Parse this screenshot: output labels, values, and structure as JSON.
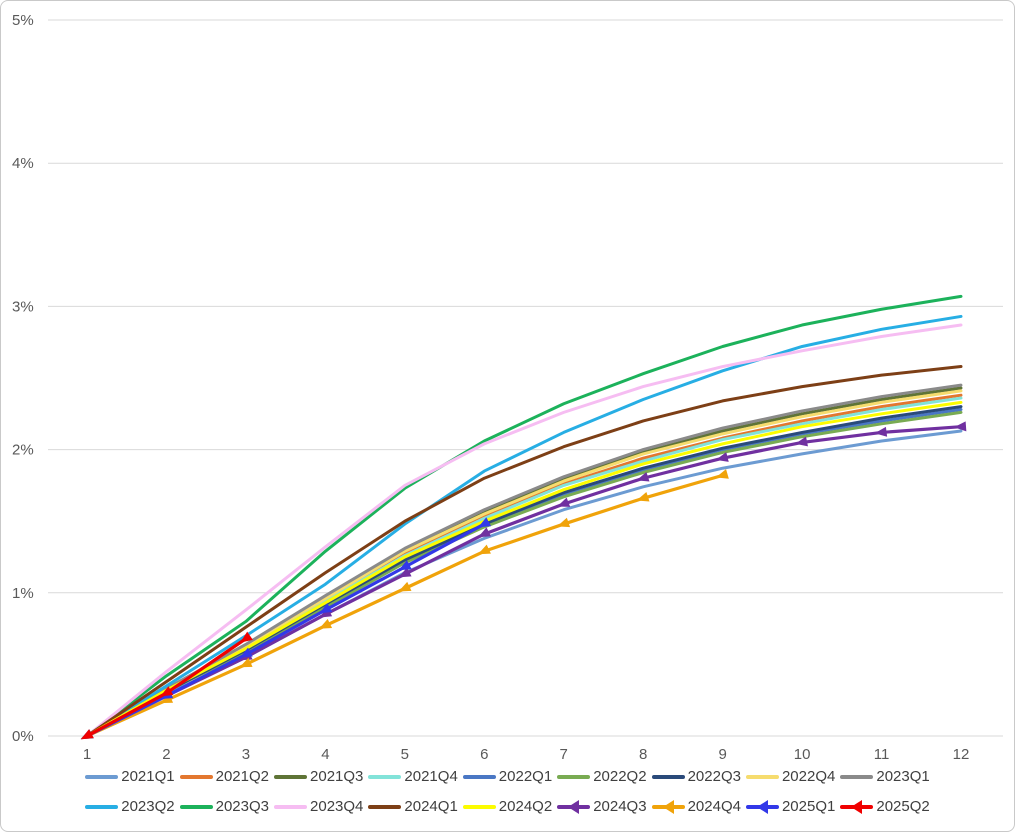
{
  "figure": {
    "background": "#ffffff",
    "border_color": "#c9c9c9"
  },
  "chart_data": {
    "type": "line",
    "title": "",
    "xlabel": "",
    "ylabel": "",
    "x": [
      1,
      2,
      3,
      4,
      5,
      6,
      7,
      8,
      9,
      10,
      11,
      12
    ],
    "x_ticks": [
      "1",
      "2",
      "3",
      "4",
      "5",
      "6",
      "7",
      "8",
      "9",
      "10",
      "11",
      "12"
    ],
    "y_ticks": [
      "0%",
      "1%",
      "2%",
      "3%",
      "4%",
      "5%"
    ],
    "y_tick_values": [
      0,
      1,
      2,
      3,
      4,
      5
    ],
    "xlim": [
      1,
      12
    ],
    "ylim": [
      0,
      5
    ],
    "y_unit": "%",
    "grid": "horizontal",
    "gridline_color": "#d9d9d9",
    "axis_label_color": "#595959",
    "legend_text_color": "#3f3f3f",
    "legend_position": "bottom",
    "legend_rows": 2,
    "series": [
      {
        "name": "2021Q1",
        "color": "#6C9BD2",
        "marker": false,
        "values": [
          0,
          0.29,
          0.55,
          0.85,
          1.14,
          1.38,
          1.58,
          1.74,
          1.87,
          1.97,
          2.06,
          2.13
        ]
      },
      {
        "name": "2021Q2",
        "color": "#E3772F",
        "marker": false,
        "values": [
          0,
          0.32,
          0.62,
          0.95,
          1.27,
          1.54,
          1.76,
          1.94,
          2.08,
          2.2,
          2.3,
          2.38
        ]
      },
      {
        "name": "2021Q3",
        "color": "#5F7436",
        "marker": false,
        "values": [
          0,
          0.33,
          0.63,
          0.97,
          1.3,
          1.57,
          1.8,
          1.98,
          2.13,
          2.25,
          2.35,
          2.43
        ]
      },
      {
        "name": "2021Q4",
        "color": "#82E3D9",
        "marker": false,
        "values": [
          0,
          0.32,
          0.61,
          0.94,
          1.26,
          1.52,
          1.75,
          1.92,
          2.07,
          2.18,
          2.28,
          2.36
        ]
      },
      {
        "name": "2022Q1",
        "color": "#4A77C4",
        "marker": false,
        "values": [
          0,
          0.31,
          0.59,
          0.91,
          1.22,
          1.47,
          1.69,
          1.86,
          2.0,
          2.11,
          2.2,
          2.28
        ]
      },
      {
        "name": "2022Q2",
        "color": "#79AB52",
        "marker": false,
        "values": [
          0,
          0.31,
          0.59,
          0.9,
          1.21,
          1.46,
          1.67,
          1.84,
          1.98,
          2.09,
          2.18,
          2.26
        ]
      },
      {
        "name": "2022Q3",
        "color": "#2A4A7A",
        "marker": false,
        "values": [
          0,
          0.31,
          0.6,
          0.92,
          1.23,
          1.48,
          1.7,
          1.87,
          2.01,
          2.12,
          2.22,
          2.3
        ]
      },
      {
        "name": "2022Q4",
        "color": "#F6DC6E",
        "marker": false,
        "values": [
          0,
          0.33,
          0.63,
          0.96,
          1.29,
          1.55,
          1.78,
          1.97,
          2.11,
          2.23,
          2.33,
          2.41
        ]
      },
      {
        "name": "2023Q1",
        "color": "#8A8A8A",
        "marker": false,
        "values": [
          0,
          0.33,
          0.64,
          0.98,
          1.31,
          1.58,
          1.81,
          2.0,
          2.15,
          2.27,
          2.37,
          2.45
        ]
      },
      {
        "name": "2023Q2",
        "color": "#27AEE4",
        "marker": false,
        "values": [
          0,
          0.35,
          0.7,
          1.06,
          1.48,
          1.85,
          2.12,
          2.35,
          2.55,
          2.72,
          2.84,
          2.93
        ]
      },
      {
        "name": "2023Q3",
        "color": "#1CB25B",
        "marker": false,
        "values": [
          0,
          0.42,
          0.8,
          1.29,
          1.73,
          2.06,
          2.32,
          2.53,
          2.72,
          2.87,
          2.98,
          3.07
        ]
      },
      {
        "name": "2023Q4",
        "color": "#F6BDF2",
        "marker": false,
        "values": [
          0,
          0.45,
          0.88,
          1.32,
          1.75,
          2.04,
          2.26,
          2.44,
          2.58,
          2.69,
          2.79,
          2.87
        ]
      },
      {
        "name": "2024Q1",
        "color": "#7D3F16",
        "marker": false,
        "values": [
          0,
          0.38,
          0.76,
          1.14,
          1.5,
          1.8,
          2.02,
          2.2,
          2.34,
          2.44,
          2.52,
          2.58
        ]
      },
      {
        "name": "2024Q2",
        "color": "#FCFC00",
        "marker": false,
        "values": [
          0,
          0.32,
          0.61,
          0.93,
          1.25,
          1.5,
          1.72,
          1.9,
          2.04,
          2.16,
          2.25,
          2.33
        ]
      },
      {
        "name": "2024Q3",
        "color": "#7030A0",
        "marker": true,
        "values": [
          0,
          0.28,
          0.55,
          0.85,
          1.13,
          1.41,
          1.62,
          1.8,
          1.94,
          2.05,
          2.12,
          2.16
        ]
      },
      {
        "name": "2024Q4",
        "color": "#F0A30A",
        "marker": true,
        "values": [
          0,
          0.25,
          0.5,
          0.77,
          1.03,
          1.29,
          1.48,
          1.66,
          1.82
        ]
      },
      {
        "name": "2025Q1",
        "color": "#3238E8",
        "marker": true,
        "values": [
          0,
          0.28,
          0.57,
          0.88,
          1.18,
          1.48
        ]
      },
      {
        "name": "2025Q2",
        "color": "#F00000",
        "marker": true,
        "values": [
          0,
          0.3,
          0.68
        ]
      }
    ]
  }
}
